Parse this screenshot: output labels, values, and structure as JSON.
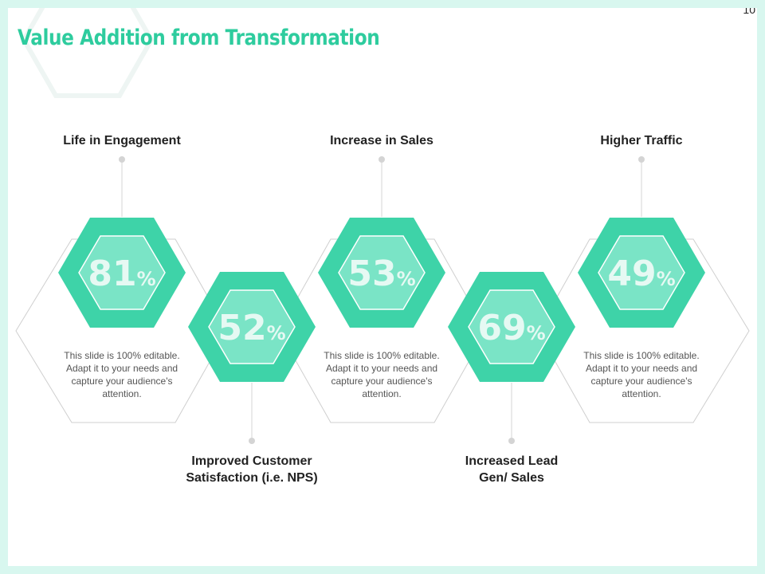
{
  "slide": {
    "page_number": "10",
    "title": "Value Addition from Transformation"
  },
  "colors": {
    "accent": "#2ecc9e",
    "hex_outer": "#3ed3a8",
    "hex_inner": "#7ae4c6",
    "frame": "#d8f7ef"
  },
  "items": [
    {
      "label": "Life in Engagement",
      "value": "81",
      "unit": "%",
      "description": "This slide is 100% editable. Adapt it to your needs and capture your audience's attention."
    },
    {
      "label_lines": [
        "Improved Customer",
        "Satisfaction (i.e. NPS)"
      ],
      "value": "52",
      "unit": "%"
    },
    {
      "label": "Increase in Sales",
      "value": "53",
      "unit": "%",
      "description": "This slide is 100% editable. Adapt it to your needs and capture your audience's attention."
    },
    {
      "label_lines": [
        "Increased Lead",
        "Gen/ Sales"
      ],
      "value": "69",
      "unit": "%"
    },
    {
      "label": "Higher Traffic",
      "value": "49",
      "unit": "%",
      "description": "This slide is 100% editable. Adapt it to your needs and capture your audience's attention."
    }
  ]
}
